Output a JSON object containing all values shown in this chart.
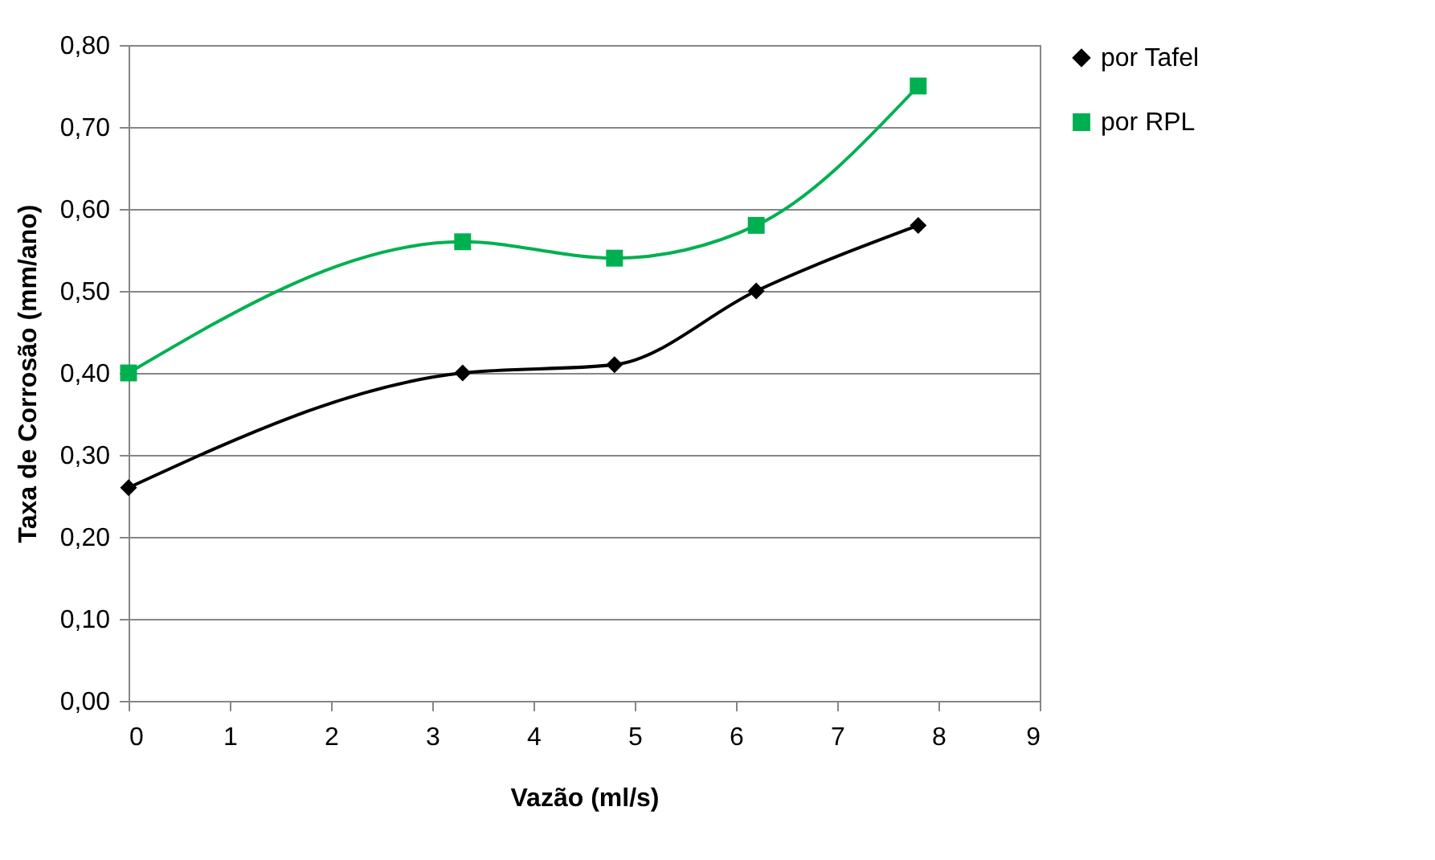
{
  "chart_data": {
    "type": "line",
    "xlabel": "Vazão (ml/s)",
    "ylabel": "Taxa de Corrosão (mm/ano)",
    "x": [
      0,
      3.3,
      4.8,
      6.2,
      7.8
    ],
    "series": [
      {
        "name": "por Tafel",
        "color": "#000000",
        "marker": "diamond",
        "values": [
          0.26,
          0.4,
          0.41,
          0.5,
          0.58
        ]
      },
      {
        "name": "por RPL",
        "color": "#00b050",
        "marker": "square",
        "values": [
          0.4,
          0.56,
          0.54,
          0.58,
          0.75
        ]
      }
    ],
    "xlim": [
      0,
      9
    ],
    "xticks": [
      0,
      1,
      2,
      3,
      4,
      5,
      6,
      7,
      8,
      9
    ],
    "ylim": [
      0,
      0.8
    ],
    "yticks": [
      {
        "value": 0,
        "label": "0,00"
      },
      {
        "value": 0.1,
        "label": "0,10"
      },
      {
        "value": 0.2,
        "label": "0,20"
      },
      {
        "value": 0.3,
        "label": "0,30"
      },
      {
        "value": 0.4,
        "label": "0,40"
      },
      {
        "value": 0.5,
        "label": "0,50"
      },
      {
        "value": 0.6,
        "label": "0,60"
      },
      {
        "value": 0.7,
        "label": "0,70"
      },
      {
        "value": 0.8,
        "label": "0,80"
      }
    ],
    "grid": "y",
    "legend": "right",
    "line_style": "solid"
  }
}
